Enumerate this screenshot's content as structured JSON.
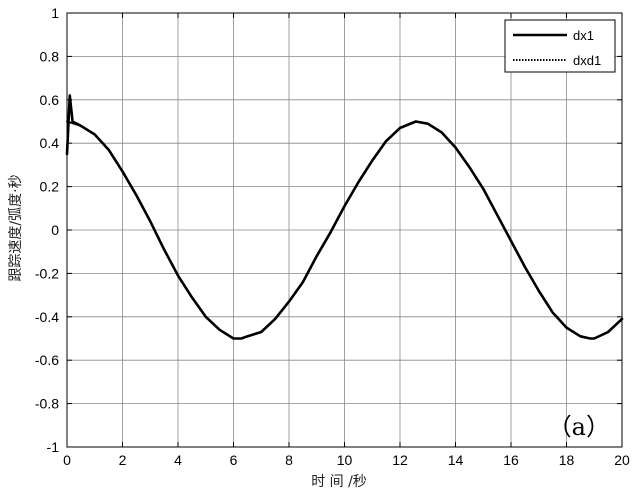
{
  "chart_data": {
    "type": "line",
    "title": "",
    "xlabel": "时 间 /秒",
    "ylabel": "跟踪速度/弧度·秒",
    "xlim": [
      0,
      20
    ],
    "ylim": [
      -1,
      1
    ],
    "xticks": [
      0,
      2,
      4,
      6,
      8,
      10,
      12,
      14,
      16,
      18,
      20
    ],
    "yticks": [
      1,
      0.8,
      0.6,
      0.4,
      0.2,
      0,
      -0.2,
      -0.4,
      -0.6,
      -0.8,
      -1
    ],
    "xtick_labels": [
      "0",
      "2",
      "4",
      "6",
      "8",
      "10",
      "12",
      "14",
      "16",
      "18",
      "20"
    ],
    "ytick_labels": [
      "1",
      "0.8",
      "0.6",
      "0.4",
      "0.2",
      "0",
      "-0.2",
      "-0.4",
      "-0.6",
      "-0.8",
      "-1"
    ],
    "grid": true,
    "legend_position": "top-right",
    "panel_label": "（a）",
    "series": [
      {
        "name": "dx1",
        "style": "solid",
        "color": "#000000",
        "x": [
          0,
          0.1,
          0.2,
          0.5,
          1,
          1.5,
          2,
          2.5,
          3,
          3.5,
          4,
          4.5,
          5,
          5.5,
          6,
          6.28,
          6.5,
          7,
          7.5,
          8,
          8.5,
          9,
          9.5,
          10,
          10.5,
          11,
          11.5,
          12,
          12.57,
          13,
          13.5,
          14,
          14.5,
          15,
          15.5,
          16,
          16.5,
          17,
          17.5,
          18,
          18.5,
          18.85,
          19,
          19.5,
          20
        ],
        "y": [
          0.35,
          0.62,
          0.5,
          0.48,
          0.44,
          0.37,
          0.27,
          0.16,
          0.04,
          -0.09,
          -0.21,
          -0.31,
          -0.4,
          -0.46,
          -0.5,
          -0.5,
          -0.49,
          -0.47,
          -0.41,
          -0.33,
          -0.24,
          -0.12,
          -0.01,
          0.11,
          0.22,
          0.32,
          0.41,
          0.47,
          0.5,
          0.49,
          0.45,
          0.38,
          0.29,
          0.19,
          0.07,
          -0.05,
          -0.17,
          -0.28,
          -0.38,
          -0.45,
          -0.49,
          -0.5,
          -0.5,
          -0.47,
          -0.41
        ]
      },
      {
        "name": "dxd1",
        "style": "dotted",
        "color": "#000000",
        "x": [
          0,
          0.5,
          1,
          1.5,
          2,
          2.5,
          3,
          3.5,
          4,
          4.5,
          5,
          5.5,
          6,
          6.28,
          6.5,
          7,
          7.5,
          8,
          8.5,
          9,
          9.5,
          10,
          10.5,
          11,
          11.5,
          12,
          12.57,
          13,
          13.5,
          14,
          14.5,
          15,
          15.5,
          16,
          16.5,
          17,
          17.5,
          18,
          18.5,
          18.85,
          19,
          19.5,
          20
        ],
        "y": [
          0.5,
          0.48,
          0.44,
          0.37,
          0.27,
          0.16,
          0.04,
          -0.09,
          -0.21,
          -0.31,
          -0.4,
          -0.46,
          -0.5,
          -0.5,
          -0.49,
          -0.47,
          -0.41,
          -0.33,
          -0.24,
          -0.12,
          -0.01,
          0.11,
          0.22,
          0.32,
          0.41,
          0.47,
          0.5,
          0.49,
          0.45,
          0.38,
          0.29,
          0.19,
          0.07,
          -0.05,
          -0.17,
          -0.28,
          -0.38,
          -0.45,
          -0.49,
          -0.5,
          -0.5,
          -0.47,
          -0.41
        ]
      }
    ]
  }
}
